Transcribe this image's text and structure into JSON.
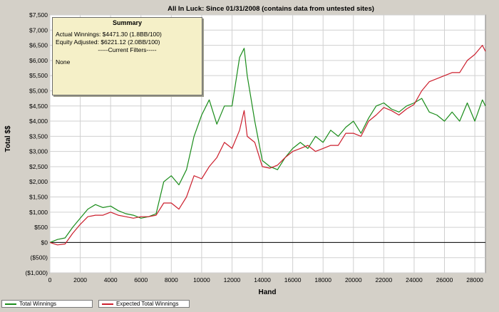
{
  "chart_data": {
    "type": "line",
    "title": "All In Luck: Since 01/31/2008 (contains data from untested sites)",
    "xlabel": "Hand",
    "ylabel": "Total $$",
    "xlim": [
      0,
      28700
    ],
    "ylim": [
      -1000,
      7500
    ],
    "x_ticks": [
      0,
      2000,
      4000,
      6000,
      8000,
      10000,
      12000,
      14000,
      16000,
      18000,
      20000,
      22000,
      24000,
      26000,
      28000
    ],
    "y_ticks": [
      -1000,
      -500,
      0,
      500,
      1000,
      1500,
      2000,
      2500,
      3000,
      3500,
      4000,
      4500,
      5000,
      5500,
      6000,
      6500,
      7000,
      7500
    ],
    "y_tick_labels": [
      "($1,000)",
      "($500)",
      "$0",
      "$500",
      "$1,000",
      "$1,500",
      "$2,000",
      "$2,500",
      "$3,000",
      "$3,500",
      "$4,000",
      "$4,500",
      "$5,000",
      "$5,500",
      "$6,000",
      "$6,500",
      "$7,000",
      "$7,500"
    ],
    "grid": true,
    "legend_position": "bottom",
    "series": [
      {
        "name": "Total Winnings",
        "color": "#1a8c1a",
        "x": [
          0,
          500,
          1000,
          1500,
          2000,
          2500,
          3000,
          3500,
          4000,
          4500,
          5000,
          5500,
          6000,
          6500,
          7000,
          7500,
          8000,
          8500,
          9000,
          9500,
          10000,
          10500,
          11000,
          11500,
          12000,
          12500,
          12800,
          13000,
          13500,
          14000,
          14500,
          15000,
          15500,
          16000,
          16500,
          17000,
          17500,
          18000,
          18500,
          19000,
          19500,
          20000,
          20500,
          21000,
          21500,
          22000,
          22500,
          23000,
          23500,
          24000,
          24500,
          25000,
          25500,
          26000,
          26500,
          27000,
          27500,
          28000,
          28500,
          28700
        ],
        "y": [
          0,
          100,
          150,
          500,
          800,
          1100,
          1250,
          1150,
          1200,
          1050,
          950,
          900,
          800,
          850,
          950,
          2000,
          2200,
          1900,
          2400,
          3500,
          4200,
          4700,
          3900,
          4500,
          4500,
          6100,
          6400,
          5500,
          4000,
          2700,
          2500,
          2400,
          2800,
          3100,
          3300,
          3100,
          3500,
          3300,
          3700,
          3500,
          3800,
          4000,
          3600,
          4100,
          4500,
          4600,
          4400,
          4300,
          4500,
          4600,
          4750,
          4300,
          4200,
          4000,
          4300,
          4000,
          4600,
          4000,
          4700,
          4500
        ]
      },
      {
        "name": "Expected Total Winnings",
        "color": "#cc1f2d",
        "x": [
          0,
          500,
          1000,
          1500,
          2000,
          2500,
          3000,
          3500,
          4000,
          4500,
          5000,
          5500,
          6000,
          6500,
          7000,
          7500,
          8000,
          8500,
          9000,
          9500,
          10000,
          10500,
          11000,
          11500,
          12000,
          12500,
          12800,
          13000,
          13500,
          14000,
          14500,
          15000,
          15500,
          16000,
          16500,
          17000,
          17500,
          18000,
          18500,
          19000,
          19500,
          20000,
          20500,
          21000,
          21500,
          22000,
          22500,
          23000,
          23500,
          24000,
          24500,
          25000,
          25500,
          26000,
          26500,
          27000,
          27500,
          28000,
          28500,
          28700
        ],
        "y": [
          0,
          -80,
          -50,
          300,
          600,
          850,
          900,
          900,
          1000,
          900,
          850,
          800,
          850,
          850,
          900,
          1300,
          1300,
          1100,
          1500,
          2200,
          2100,
          2500,
          2800,
          3300,
          3100,
          3700,
          4350,
          3500,
          3300,
          2500,
          2450,
          2550,
          2800,
          3000,
          3100,
          3200,
          3000,
          3100,
          3200,
          3200,
          3600,
          3600,
          3500,
          4000,
          4200,
          4450,
          4350,
          4200,
          4400,
          4550,
          5000,
          5300,
          5400,
          5500,
          5600,
          5600,
          6000,
          6200,
          6500,
          6300
        ]
      }
    ]
  },
  "summary": {
    "heading": "Summary",
    "actual_winnings": "Actual Winnings: $4471.30 (1.8BB/100)",
    "equity_adjusted": "Equity Adjusted: $6221.12 (2.0BB/100)",
    "filters_heading": "-----Current Filters-----",
    "filters_value": "None"
  }
}
